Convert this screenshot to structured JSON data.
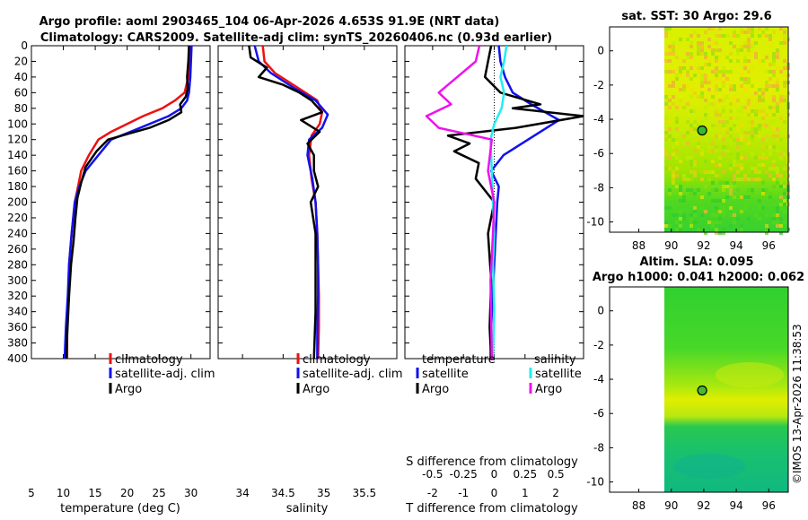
{
  "titles": {
    "line1": "Argo profile: aoml 2903465_104 06-Apr-2026 4.653S 91.9E (NRT data)",
    "line2": "Climatology: CARS2009. Satellite-adj clim: synTS_20260406.nc (0.93d earlier)"
  },
  "timestamp": "©IMOS 13-Apr-2026 11:38:53",
  "colors": {
    "red": "#ee1111",
    "blue": "#1111ee",
    "black": "#000000",
    "magenta": "#ee11ee",
    "cyan": "#22eeee"
  },
  "chart_data": [
    {
      "type": "line",
      "name": "temperature-profile",
      "xlabel": "temperature (deg C)",
      "xlim": [
        5,
        33
      ],
      "xticks": [
        5,
        10,
        15,
        20,
        25,
        30
      ],
      "ylim": [
        0,
        400
      ],
      "yticks": [
        0,
        20,
        40,
        60,
        80,
        100,
        120,
        140,
        160,
        180,
        200,
        220,
        240,
        260,
        280,
        300,
        320,
        340,
        360,
        380,
        400
      ],
      "legend": [
        "climatology",
        "satellite-adj. clim",
        "Argo"
      ],
      "series": [
        {
          "name": "climatology",
          "color": "red",
          "x": [
            29.9,
            29.8,
            29.6,
            29.0,
            27.5,
            25.5,
            22.5,
            20.0,
            17.5,
            15.5,
            14.0,
            12.8,
            12.3,
            11.8,
            11.3,
            10.9,
            10.8,
            10.6,
            10.6
          ],
          "y": [
            0,
            20,
            40,
            60,
            70,
            80,
            90,
            100,
            110,
            120,
            140,
            160,
            180,
            200,
            240,
            280,
            320,
            360,
            400
          ]
        },
        {
          "name": "satellite-adj. clim",
          "color": "blue",
          "x": [
            30.1,
            30.0,
            29.9,
            29.7,
            29.4,
            28.5,
            26.5,
            23.5,
            20.5,
            17.5,
            15.5,
            13.5,
            12.5,
            11.8,
            11.3,
            10.9,
            10.7,
            10.4,
            10.2
          ],
          "y": [
            0,
            20,
            40,
            60,
            70,
            80,
            90,
            100,
            110,
            120,
            140,
            160,
            180,
            200,
            240,
            280,
            320,
            360,
            400
          ]
        },
        {
          "name": "Argo",
          "color": "black",
          "x": [
            29.7,
            29.6,
            29.4,
            29.5,
            29.2,
            28.3,
            28.5,
            26.5,
            23.5,
            20.0,
            17.0,
            15.2,
            13.5,
            12.8,
            12.2,
            11.9,
            11.6,
            11.2,
            10.9,
            10.6,
            10.5
          ],
          "y": [
            0,
            20,
            40,
            55,
            65,
            75,
            85,
            95,
            105,
            113,
            120,
            135,
            155,
            175,
            195,
            220,
            250,
            280,
            320,
            370,
            400
          ]
        }
      ]
    },
    {
      "type": "line",
      "name": "salinity-profile",
      "xlabel": "salinity",
      "xlim": [
        33.7,
        35.9
      ],
      "xticks": [
        34,
        34.5,
        35,
        35.5
      ],
      "xticklabels": [
        "34",
        "34.5",
        "35",
        "35.5"
      ],
      "ylim": [
        0,
        400
      ],
      "legend": [
        "climatology",
        "satellite-adj. clim",
        "Argo"
      ],
      "series": [
        {
          "name": "climatology",
          "color": "red",
          "x": [
            34.25,
            34.27,
            34.4,
            34.7,
            34.92,
            34.98,
            34.95,
            34.85,
            34.82,
            34.85,
            34.9,
            34.92,
            34.93,
            34.94,
            34.94,
            34.93
          ],
          "y": [
            0,
            20,
            35,
            55,
            70,
            85,
            100,
            115,
            140,
            170,
            200,
            240,
            280,
            320,
            360,
            400
          ]
        },
        {
          "name": "satellite-adj. clim",
          "color": "blue",
          "x": [
            34.15,
            34.2,
            34.35,
            34.65,
            34.9,
            35.05,
            34.98,
            34.82,
            34.8,
            34.86,
            34.9,
            34.92,
            34.93,
            34.93,
            34.92,
            34.92
          ],
          "y": [
            0,
            20,
            35,
            55,
            70,
            88,
            105,
            120,
            140,
            170,
            200,
            240,
            280,
            320,
            360,
            400
          ]
        },
        {
          "name": "Argo",
          "color": "black",
          "x": [
            34.08,
            34.1,
            34.3,
            34.2,
            34.5,
            34.7,
            34.85,
            34.98,
            34.72,
            34.95,
            34.8,
            34.88,
            34.88,
            34.93,
            34.84,
            34.9,
            34.9,
            34.9,
            34.88
          ],
          "y": [
            0,
            15,
            28,
            40,
            50,
            60,
            70,
            85,
            95,
            110,
            125,
            140,
            160,
            180,
            200,
            240,
            280,
            340,
            400
          ]
        }
      ]
    },
    {
      "type": "line",
      "name": "difference-profile",
      "xlabel": "T difference from climatology",
      "xlim": [
        -2.9,
        2.9
      ],
      "xticks": [
        -2,
        -1,
        0,
        1,
        2
      ],
      "xlabel_top": "S difference from climatology",
      "xticks_top": [
        -0.5,
        -0.25,
        0,
        0.25,
        0.5
      ],
      "ylim": [
        0,
        400
      ],
      "legend": {
        "left_heading": "temperature",
        "right_heading": "salinity",
        "entries": [
          "satellite",
          "Argo",
          "satellite",
          "Argo"
        ]
      },
      "series": [
        {
          "name": "T satellite",
          "color": "blue",
          "x": [
            0.15,
            0.2,
            0.35,
            0.6,
            1.2,
            2.1,
            1.1,
            0.3,
            -0.1,
            0.15,
            0.1,
            0.05,
            0.0,
            -0.05,
            -0.1,
            -0.12
          ],
          "y": [
            0,
            20,
            40,
            60,
            75,
            95,
            120,
            140,
            160,
            180,
            200,
            240,
            280,
            320,
            360,
            400
          ]
        },
        {
          "name": "T Argo",
          "color": "black",
          "x": [
            -0.1,
            -0.2,
            -0.3,
            0.2,
            1.5,
            0.6,
            2.9,
            0.7,
            -1.5,
            -0.8,
            -1.3,
            -0.5,
            -0.6,
            0.0,
            -0.2,
            -0.1,
            -0.15,
            -0.1
          ],
          "y": [
            0,
            20,
            40,
            60,
            75,
            80,
            90,
            105,
            115,
            125,
            135,
            150,
            170,
            200,
            240,
            300,
            360,
            400
          ]
        },
        {
          "name": "S satellite",
          "color": "cyan",
          "x": [
            0.1,
            0.08,
            0.05,
            0.08,
            0.06,
            0.0,
            -0.03,
            -0.02,
            -0.01,
            0.0,
            -0.01,
            0.0,
            -0.01
          ],
          "y": [
            0,
            20,
            40,
            60,
            80,
            100,
            120,
            160,
            200,
            240,
            280,
            340,
            400
          ]
        },
        {
          "name": "S Argo",
          "color": "magenta",
          "x": [
            -0.12,
            -0.15,
            -0.3,
            -0.45,
            -0.35,
            -0.55,
            -0.45,
            -0.02,
            -0.05,
            0.0,
            -0.01,
            -0.03,
            -0.02
          ],
          "y": [
            0,
            20,
            40,
            60,
            75,
            90,
            105,
            120,
            160,
            200,
            240,
            300,
            400
          ]
        }
      ]
    },
    {
      "type": "heatmap",
      "name": "sst-map",
      "title": "sat. SST: 30 Argo: 29.6",
      "xlim": [
        86.2,
        97.2
      ],
      "ylim": [
        -10.6,
        1.4
      ],
      "xticks": [
        88,
        90,
        92,
        94,
        96
      ],
      "yticks": [
        0,
        -2,
        -4,
        -6,
        -8,
        -10
      ],
      "data_xrange": [
        90,
        97.2
      ],
      "argo_position": [
        91.9,
        -4.653
      ]
    },
    {
      "type": "heatmap",
      "name": "sla-map",
      "title": "Altim. SLA: 0.095",
      "subtitle": "Argo h1000: 0.041 h2000: 0.062",
      "xlim": [
        86.2,
        97.2
      ],
      "ylim": [
        -10.6,
        1.4
      ],
      "xticks": [
        88,
        90,
        92,
        94,
        96
      ],
      "yticks": [
        0,
        -2,
        -4,
        -6,
        -8,
        -10
      ],
      "data_xrange": [
        90,
        97.2
      ],
      "argo_position": [
        91.9,
        -4.653
      ]
    }
  ]
}
